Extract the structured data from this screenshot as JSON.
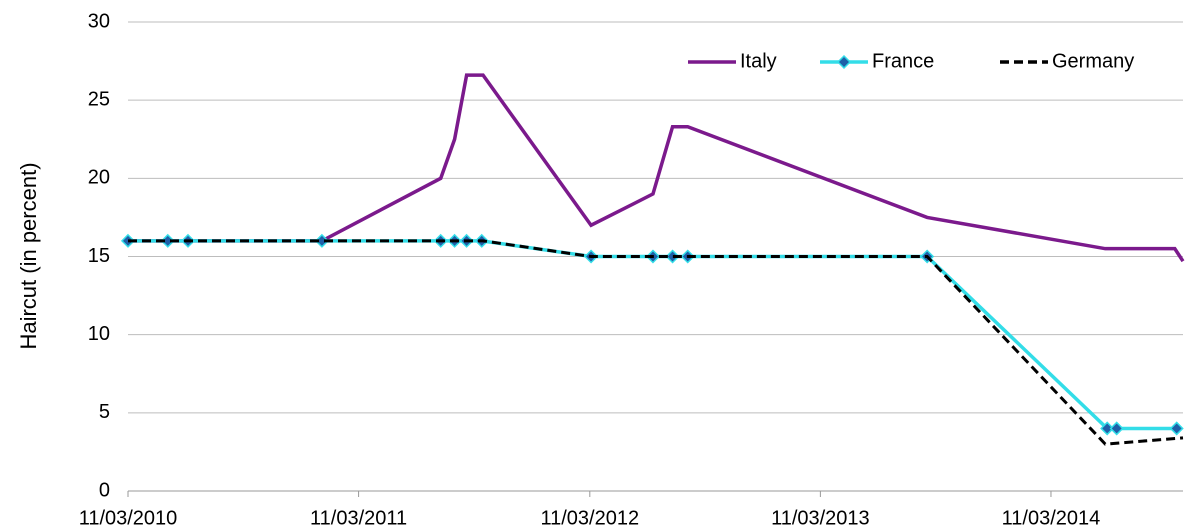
{
  "chart_data": {
    "type": "line",
    "y_label": "Haircut (in percent)",
    "xlim": [
      "2010-03-11",
      "2014-10-06"
    ],
    "xticks": [
      {
        "value": "2010-03-11",
        "label": "11/03/2010"
      },
      {
        "value": "2011-03-11",
        "label": "11/03/2011"
      },
      {
        "value": "2012-03-11",
        "label": "11/03/2012"
      },
      {
        "value": "2013-03-11",
        "label": "11/03/2013"
      },
      {
        "value": "2014-03-11",
        "label": "11/03/2014"
      }
    ],
    "ylim": [
      0,
      30
    ],
    "yticks": [
      0,
      5,
      10,
      15,
      20,
      25,
      30
    ],
    "grid": true,
    "legend": "top-right",
    "series": [
      {
        "name": "Italy",
        "color": "#7b1a8c",
        "style": "solid",
        "marker": false,
        "x": [
          "2010-03-11",
          "2011-01-12",
          "2011-07-19",
          "2011-08-10",
          "2011-08-29",
          "2011-09-24",
          "2012-03-13",
          "2012-06-19",
          "2012-07-20",
          "2012-08-13",
          "2013-08-27",
          "2014-06-05",
          "2014-09-23",
          "2014-10-06"
        ],
        "values": [
          16,
          16,
          20,
          22.5,
          26.6,
          26.6,
          17,
          19,
          23.3,
          23.3,
          17.5,
          15.5,
          15.5,
          14.7
        ]
      },
      {
        "name": "France",
        "color": "#33dde8",
        "style": "solid",
        "marker": true,
        "marker_color": "#1f5fa8",
        "x": [
          "2010-03-11",
          "2010-05-13",
          "2010-06-14",
          "2011-01-12",
          "2011-07-19",
          "2011-08-10",
          "2011-08-29",
          "2011-09-22",
          "2012-03-13",
          "2012-06-19",
          "2012-07-20",
          "2012-08-13",
          "2013-08-27",
          "2014-06-08",
          "2014-06-23",
          "2014-09-26"
        ],
        "values": [
          16,
          16,
          16,
          16,
          16,
          16,
          16,
          16,
          15,
          15,
          15,
          15,
          15,
          4,
          4,
          4
        ]
      },
      {
        "name": "Germany",
        "color": "#000000",
        "style": "dashed",
        "marker": false,
        "x": [
          "2010-03-11",
          "2011-07-19",
          "2011-09-24",
          "2012-03-13",
          "2013-08-27",
          "2014-06-05",
          "2014-10-06"
        ],
        "values": [
          16,
          16,
          16,
          15,
          15,
          3,
          3.4
        ]
      }
    ]
  }
}
